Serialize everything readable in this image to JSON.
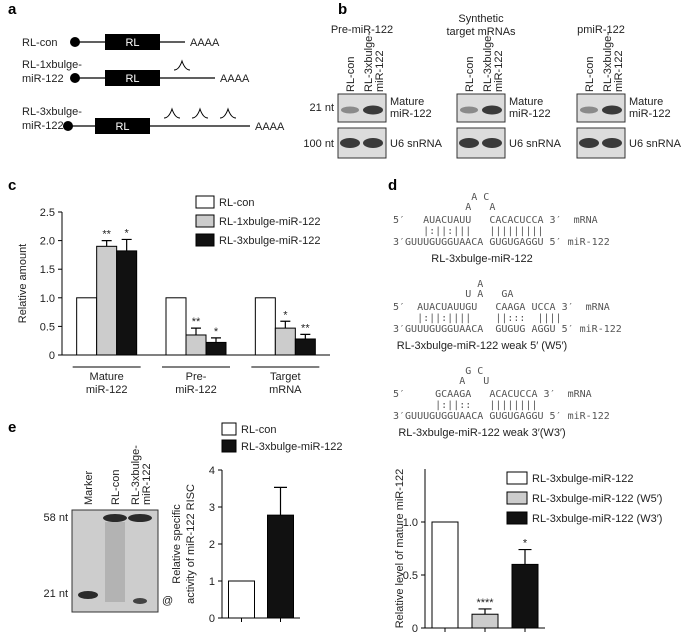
{
  "panel_labels": [
    "a",
    "b",
    "c",
    "d",
    "e"
  ],
  "constructs": [
    {
      "label": [
        "RL-con"
      ],
      "box": "RL",
      "tail": "AAAA"
    },
    {
      "label": [
        "RL-1xbulge-",
        "miR-122"
      ],
      "box": "RL",
      "tail": "AAAA"
    },
    {
      "label": [
        "RL-3xbulge-",
        "miR-122"
      ],
      "box": "RL",
      "tail": "AAAA"
    }
  ],
  "blots": {
    "groups": [
      {
        "title": [
          "Pre-miR-122"
        ]
      },
      {
        "title": [
          "Synthetic",
          "target mRNAs"
        ]
      },
      {
        "title": [
          "pmiR-122"
        ]
      }
    ],
    "lanes": [
      [
        "RL-con"
      ],
      [
        "RL-3xbulge-",
        "miR-122"
      ]
    ],
    "sizes": [
      "21 nt",
      "100 nt"
    ],
    "bands": [
      [
        "Mature",
        "miR-122"
      ],
      [
        "U6 snRNA"
      ]
    ]
  },
  "alignments": [
    {
      "loops": [
        "             A C",
        "            A   A"
      ],
      "mrna": "5′   AUACUAUU   CACACUCCA 3′  mRNA",
      "pairs": "     |:||:|||   |||||||||",
      "mirna": "3′GUUUGUGGUAACA GUGUGAGGU 5′ miR-122",
      "name": "RL-3xbulge-miR-122"
    },
    {
      "loops": [
        "              A",
        "            U A   GA"
      ],
      "mrna": "5′  AUACUAUUGU   CAAGA UCCA 3′  mRNA",
      "pairs": "    |:||:||||    ||:::  ||||",
      "mirna": "3′GUUUGUGGUAACA  GUGUG AGGU 5′ miR-122",
      "name": "RL-3xbulge-miR-122 weak 5′ (W5′)"
    },
    {
      "loops": [
        "            G C",
        "           A   U"
      ],
      "mrna": "5′     GCAAGA   ACACUCCA 3′  mRNA",
      "pairs": "       |:||::   ||||||||",
      "mirna": "3′GUUUGUGGUAACA GUGUGAGGU 5′ miR-122",
      "name": "RL-3xbulge-miR-122 weak 3′(W3′)"
    }
  ],
  "gel": {
    "lanes": [
      [
        "Marker"
      ],
      [
        "RL-con"
      ],
      [
        "RL-3xbulge-",
        "miR-122"
      ]
    ],
    "sizes": [
      "58 nt",
      "21 nt"
    ],
    "mark": "@"
  },
  "chart_data": [
    {
      "type": "bar",
      "ylabel": [
        "Relative amount"
      ],
      "categories": [
        [
          "Mature",
          "miR-122"
        ],
        [
          "Pre-",
          "miR-122"
        ],
        [
          "Target",
          "mRNA"
        ]
      ],
      "series": [
        {
          "name": "RL-con",
          "color": "#ffffff",
          "values": [
            1,
            1,
            1
          ]
        },
        {
          "name": "RL-1xbulge-miR-122",
          "color": "#cccccc",
          "values": [
            1.9,
            0.35,
            0.47
          ],
          "errors": [
            0.1,
            0.12,
            0.12
          ],
          "stars": [
            "**",
            "**",
            "*"
          ]
        },
        {
          "name": "RL-3xbulge-miR-122",
          "color": "#111111",
          "values": [
            1.82,
            0.22,
            0.28
          ],
          "errors": [
            0.2,
            0.08,
            0.08
          ],
          "stars": [
            "*",
            "*",
            "**"
          ]
        }
      ],
      "ylim": [
        0,
        2.5
      ],
      "yticks": [
        0,
        0.5,
        {
          "value": 1,
          "label": "1.0"
        },
        1.5,
        {
          "value": 2,
          "label": "2.0"
        },
        2.5
      ]
    },
    {
      "type": "bar",
      "ylabel": [
        "Relative level of mature miR-122"
      ],
      "categories": [
        null,
        null,
        null
      ],
      "values": [
        1,
        0.13,
        0.6
      ],
      "errors": [
        null,
        0.05,
        0.14
      ],
      "stars": [
        null,
        "****",
        "*"
      ],
      "colors": [
        "#ffffff",
        "#cccccc",
        "#111111"
      ],
      "legend": [
        "RL-3xbulge-miR-122",
        "RL-3xbulge-miR-122 (W5′)",
        "RL-3xbulge-miR-122 (W3′)"
      ],
      "ylim": [
        0,
        1.5
      ],
      "yticks": [
        0,
        0.5,
        {
          "value": 1,
          "label": "1.0"
        }
      ]
    },
    {
      "type": "bar",
      "ylabel": [
        "Relative specific",
        "activity of miR-122 RISC"
      ],
      "categories": [
        null,
        null
      ],
      "values": [
        1,
        2.78
      ],
      "errors": [
        null,
        0.75
      ],
      "colors": [
        "#ffffff",
        "#111111"
      ],
      "legend": [
        "RL-con",
        "RL-3xbulge-miR-122"
      ],
      "ylim": [
        0,
        4
      ],
      "yticks": [
        0,
        1,
        2,
        3,
        4
      ]
    }
  ]
}
